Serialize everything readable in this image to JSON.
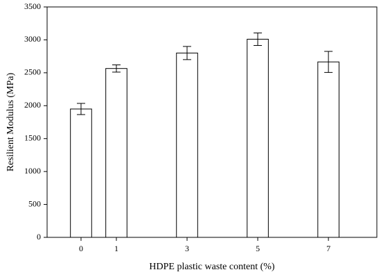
{
  "chart_data": {
    "type": "bar",
    "x_label": "HDPE plastic waste content (%)",
    "y_label": "Resilient Modulus (MPa)",
    "x": [
      0,
      1,
      3,
      5,
      7
    ],
    "values": [
      1950,
      2565,
      2800,
      3010,
      2665
    ],
    "errors": [
      85,
      55,
      100,
      95,
      160
    ],
    "color": "#ffffff",
    "xlim": [
      -0.96,
      8.37
    ],
    "xticks": [
      0,
      1,
      3,
      5,
      7
    ],
    "ylim": [
      0,
      3500
    ],
    "yticks": [
      0,
      500,
      1000,
      1500,
      2000,
      2500,
      3000,
      3500
    ]
  }
}
